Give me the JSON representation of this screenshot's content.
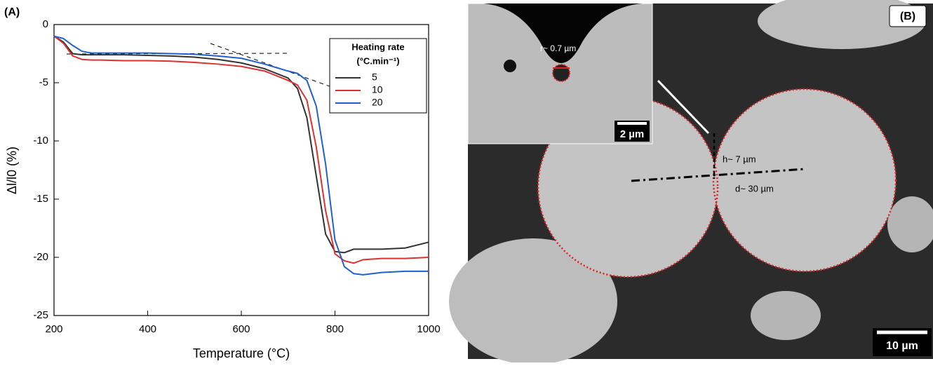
{
  "chart_data": {
    "type": "line",
    "panel_label": "(A)",
    "xlabel": "Temperature (°C)",
    "ylabel": "Δl/l0 (%)",
    "x": [
      200,
      220,
      240,
      260,
      280,
      300,
      350,
      400,
      450,
      500,
      550,
      600,
      650,
      700,
      720,
      740,
      760,
      780,
      800,
      820,
      840,
      860,
      900,
      950,
      1000
    ],
    "xlim": [
      200,
      1000
    ],
    "xticks": [
      200,
      400,
      600,
      800,
      1000
    ],
    "ylim": [
      -25,
      0
    ],
    "yticks": [
      0,
      -5,
      -10,
      -15,
      -20,
      -25
    ],
    "legend_title": [
      "Heating rate",
      "(°C.min⁻¹)"
    ],
    "legend": "upper right",
    "series": [
      {
        "name": "5",
        "color": "#333333",
        "values": [
          -1,
          -1.5,
          -2.5,
          -2.6,
          -2.6,
          -2.6,
          -2.6,
          -2.65,
          -2.7,
          -2.8,
          -3.0,
          -3.3,
          -3.8,
          -4.6,
          -5.5,
          -8,
          -13,
          -18,
          -19.5,
          -19.6,
          -19.3,
          -19.3,
          -19.3,
          -19.2,
          -18.7
        ]
      },
      {
        "name": "10",
        "color": "#e03030",
        "values": [
          -1,
          -1.6,
          -2.7,
          -3.0,
          -3.05,
          -3.05,
          -3.1,
          -3.1,
          -3.15,
          -3.25,
          -3.4,
          -3.6,
          -4.0,
          -4.8,
          -5.2,
          -6.5,
          -10.5,
          -16,
          -19.7,
          -20.3,
          -20.5,
          -20.2,
          -20.1,
          -20.1,
          -20
        ]
      },
      {
        "name": "20",
        "color": "#2060d0",
        "values": [
          -1,
          -1.2,
          -1.8,
          -2.3,
          -2.45,
          -2.45,
          -2.45,
          -2.45,
          -2.5,
          -2.55,
          -2.7,
          -2.9,
          -3.4,
          -4.0,
          -4.2,
          -4.8,
          -7,
          -12,
          -18.5,
          -20.8,
          -21.4,
          -21.5,
          -21.3,
          -21.2,
          -21.2
        ]
      }
    ]
  },
  "image_panel": {
    "label": "(B)",
    "radius_note": "r~ 0.7 µm",
    "height_note": "h~ 7 µm",
    "diameter_note": "d~ 30 µm",
    "inset_scale": "2 µm",
    "scale": "10 µm"
  }
}
